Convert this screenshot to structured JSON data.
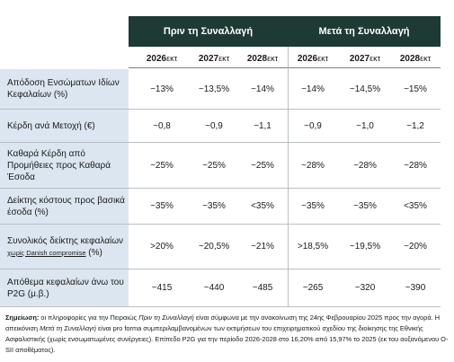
{
  "table": {
    "groups": [
      "Πριν τη Συναλλαγή",
      "Μετά τη Συναλλαγή"
    ],
    "years": [
      {
        "year": "2026",
        "suffix": "εκτ"
      },
      {
        "year": "2027",
        "suffix": "εκτ"
      },
      {
        "year": "2028",
        "suffix": "εκτ"
      },
      {
        "year": "2026",
        "suffix": "εκτ"
      },
      {
        "year": "2027",
        "suffix": "εκτ"
      },
      {
        "year": "2028",
        "suffix": "εκτ"
      }
    ],
    "rows": [
      {
        "label": "Απόδοση Ενσώματων Ιδίων Κεφαλαίων (%)",
        "values": [
          "~13%",
          "~13,5%",
          "~14%",
          "~14%",
          "~14,5%",
          "~15%"
        ]
      },
      {
        "label": "Κέρδη ανά Μετοχή (€)",
        "values": [
          "~0,8",
          "~0,9",
          "~1,1",
          "~0,9",
          "~1,0",
          "~1,2"
        ]
      },
      {
        "label": "Καθαρά Κέρδη από Προμήθειες προς Καθαρά Έσοδα",
        "values": [
          "~25%",
          "~25%",
          "~25%",
          "~28%",
          "~28%",
          "~28%"
        ]
      },
      {
        "label": "Δείκτης κόστους προς βασικά έσοδα (%)",
        "values": [
          "~35%",
          "~35%",
          "<35%",
          "~35%",
          "~35%",
          "<35%"
        ]
      },
      {
        "label": "Συνολικός δείκτης κεφαλαίων",
        "label_note": "χωρίς Danish compromise",
        "label_suffix": "(%)",
        "values": [
          ">20%",
          "~20,5%",
          "~21%",
          ">18,5%",
          "~19,5%",
          "~20%"
        ]
      },
      {
        "label": "Απόθεμα κεφαλαίων άνω του P2G (μ.β.)",
        "values": [
          "~415",
          "~440",
          "~485",
          "~265",
          "~320",
          "~390"
        ]
      }
    ]
  },
  "note": {
    "label": "Σημείωση:",
    "part1": "οι πληροφορίες για την Πειραιώς",
    "italic1": "Πριν τη Συναλλαγή",
    "part2": "είναι σύμφωνα με την ανακοίνωση της 24ης Φεβρουαρίου 2025 προς την αγορά. Η απεικόνιση",
    "italic2": "Μετά τη Συναλλαγή",
    "part3": "είναι pro forma συμπεριλαμβανομένων των εκτιμήσεων του επιχειρηματικού σχεδίου της διοίκησης της Εθνικής Ασφαλιστικής (χωρίς ενσωματωμένες συνέργειες). Επίπεδο P2G για την περίοδο 2026-2028 στο 16,20% από 15,97% το 2025 (εκ του αυξανόμενου O-SII αποθέματος)."
  }
}
